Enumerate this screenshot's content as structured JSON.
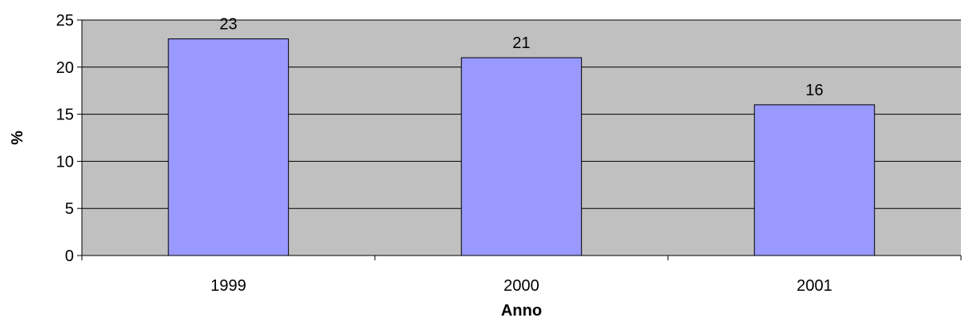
{
  "chart_data": {
    "type": "bar",
    "categories": [
      "1999",
      "2000",
      "2001"
    ],
    "values": [
      23,
      21,
      16
    ],
    "data_labels": [
      "23",
      "21",
      "16"
    ],
    "title": "",
    "xlabel": "Anno",
    "ylabel": "%",
    "ylim": [
      0,
      25
    ],
    "yticks": [
      0,
      5,
      10,
      15,
      20,
      25
    ],
    "grid": true,
    "legend": "none",
    "colors": {
      "bar_fill": "#9999ff",
      "bar_stroke": "#000000",
      "plot_background": "#c0c0c0",
      "gridline": "#000000"
    }
  }
}
